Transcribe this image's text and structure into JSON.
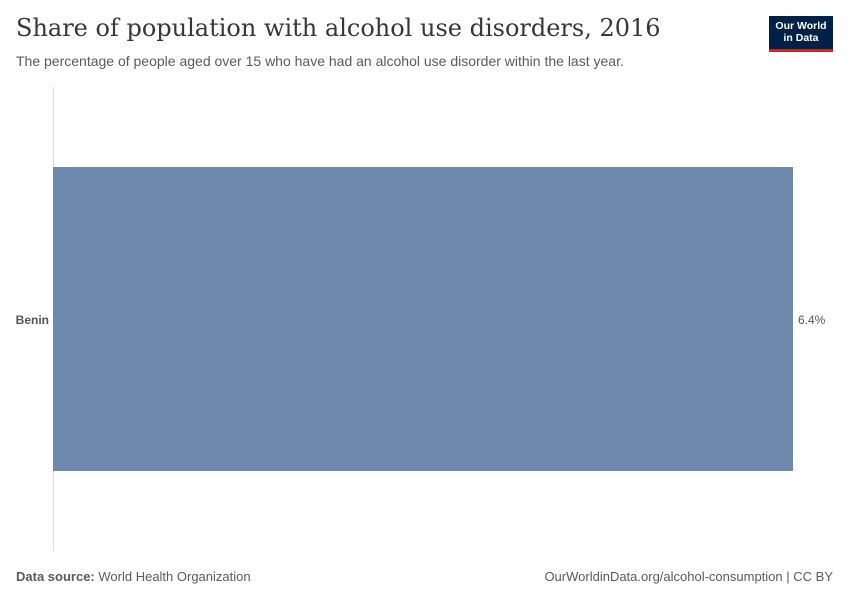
{
  "header": {
    "title": "Share of population with alcohol use disorders, 2016",
    "subtitle": "The percentage of people aged over 15 who have had an alcohol use disorder within the last year."
  },
  "logo": {
    "line1": "Our World",
    "line2": "in Data",
    "bg_color": "#002147",
    "accent_color": "#ce261e"
  },
  "footer": {
    "source_label": "Data source:",
    "source_value": "World Health Organization",
    "link_text": "OurWorldinData.org/alcohol-consumption",
    "separator": " | ",
    "license": "CC BY"
  },
  "colors": {
    "bar": "#6f88ad",
    "axis": "#dddddd"
  },
  "chart_data": {
    "type": "bar",
    "orientation": "horizontal",
    "title": "Share of population with alcohol use disorders, 2016",
    "categories": [
      "Benin"
    ],
    "values": [
      6.4
    ],
    "value_labels": [
      "6.4%"
    ],
    "unit": "%",
    "xlim": [
      0,
      6.4
    ],
    "xlabel": "",
    "ylabel": "",
    "grid": false,
    "legend": "none"
  }
}
